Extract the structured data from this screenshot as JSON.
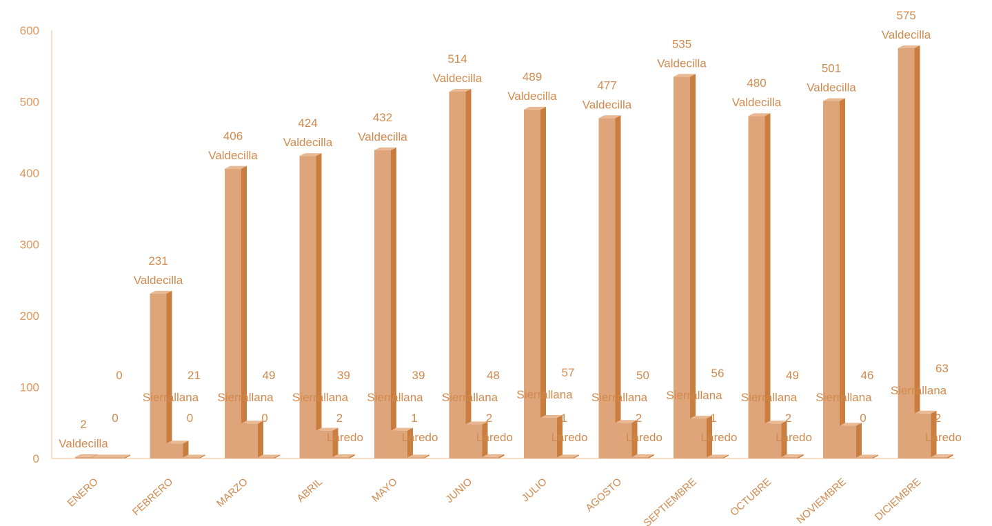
{
  "chart_data": {
    "type": "bar",
    "categories": [
      "ENERO",
      "FEBRERO",
      "MARZO",
      "ABRIL",
      "MAYO",
      "JUNIO",
      "JULIO",
      "AGOSTO",
      "SEPTIEMBRE",
      "OCTUBRE",
      "NOVIEMBRE",
      "DICIEMBRE"
    ],
    "series": [
      {
        "name": "Valdecilla",
        "values": [
          2,
          231,
          406,
          424,
          432,
          514,
          489,
          477,
          535,
          480,
          501,
          575
        ]
      },
      {
        "name": "Sierrallana",
        "values": [
          0,
          21,
          49,
          39,
          39,
          48,
          57,
          50,
          56,
          49,
          46,
          63
        ]
      },
      {
        "name": "Laredo",
        "values": [
          0,
          0,
          0,
          2,
          1,
          2,
          1,
          2,
          1,
          2,
          0,
          2
        ]
      }
    ],
    "ylim": [
      0,
      600
    ],
    "yticks": [
      0,
      100,
      200,
      300,
      400,
      500,
      600
    ],
    "grid": false,
    "colors": {
      "bar_front": "#dfa57a",
      "bar_side": "#c97e40",
      "bar_top": "#e9b994",
      "axis": "#f3cfb2",
      "text": "#d08a4e",
      "tick_text": "#e0965c"
    }
  }
}
